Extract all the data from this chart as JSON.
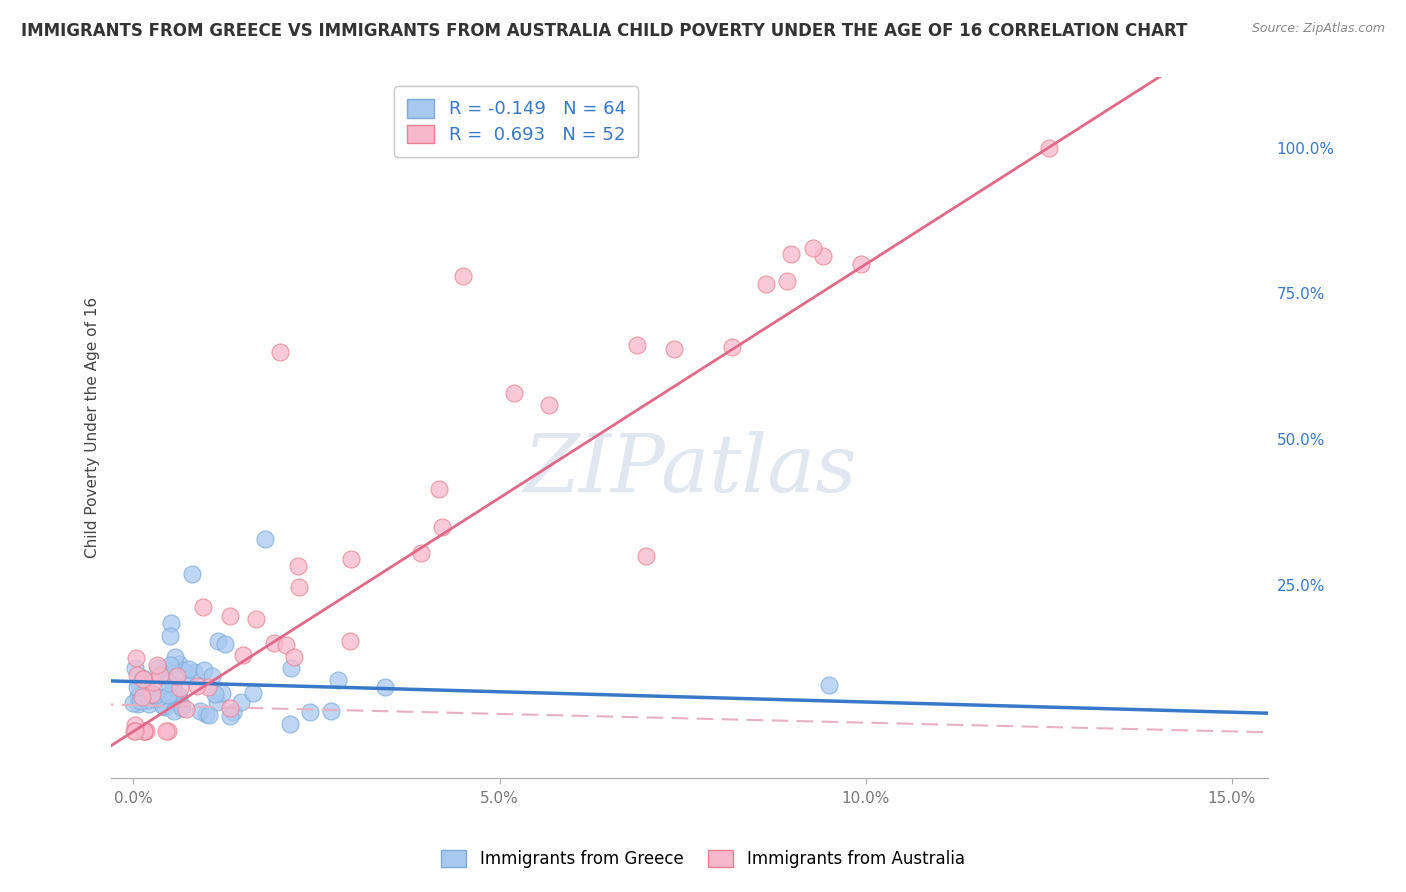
{
  "title": "IMMIGRANTS FROM GREECE VS IMMIGRANTS FROM AUSTRALIA CHILD POVERTY UNDER THE AGE OF 16 CORRELATION CHART",
  "source": "Source: ZipAtlas.com",
  "ylabel": "Child Poverty Under the Age of 16",
  "xlim": [
    -0.3,
    15.5
  ],
  "ylim": [
    -8,
    112
  ],
  "greece_color": "#a8c8f0",
  "greece_edge": "#7aaad8",
  "australia_color": "#f8b8cc",
  "australia_edge": "#e88090",
  "greece_R": -0.149,
  "greece_N": 64,
  "australia_R": 0.693,
  "australia_N": 52,
  "greece_line_color": "#3878c8",
  "australia_line_solid_color": "#e06888",
  "australia_line_dashed_color": "#e8b0c0",
  "watermark_color": "#ccd8e8",
  "background_color": "#ffffff",
  "grid_color": "#d8d8d8",
  "legend_text_color": "#3878c8",
  "title_fontsize": 12,
  "axis_label_fontsize": 11,
  "tick_fontsize": 11,
  "legend_fontsize": 13,
  "tick_color": "#777777",
  "right_tick_color": "#3878c8"
}
